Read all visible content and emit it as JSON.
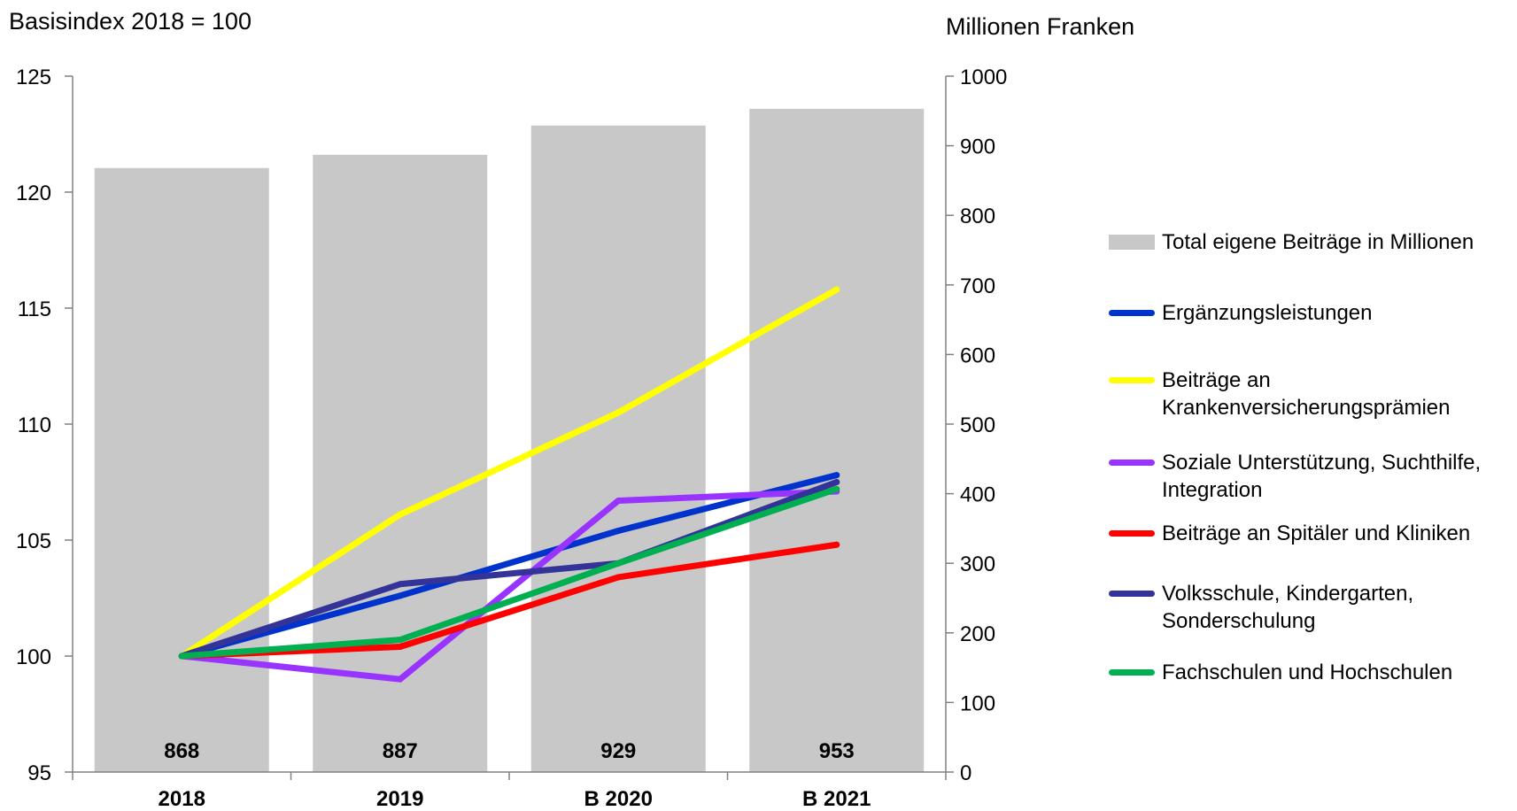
{
  "chart_data": {
    "type": "bar",
    "left_axis_label": "Basisindex 2018 = 100",
    "right_axis_label": "Millionen Franken",
    "categories": [
      "2018",
      "2019",
      "B 2020",
      "B 2021"
    ],
    "left_axis": {
      "ylim": [
        95,
        125
      ],
      "ticks": [
        "95",
        "100",
        "105",
        "110",
        "115",
        "120",
        "125"
      ]
    },
    "right_axis": {
      "ylim": [
        0,
        1000
      ],
      "ticks": [
        "0",
        "100",
        "200",
        "300",
        "400",
        "500",
        "600",
        "700",
        "800",
        "900",
        "1000"
      ]
    },
    "bars": {
      "name": "Total eigene Beiträge in Millionen",
      "color": "#c8c8c8",
      "axis": "right",
      "values": [
        868,
        887,
        929,
        953
      ],
      "labels": [
        "868",
        "887",
        "929",
        "953"
      ]
    },
    "series": [
      {
        "name": "Ergänzungsleistungen",
        "color": "#0033cc",
        "axis": "left",
        "values": [
          100,
          102.6,
          105.4,
          107.8
        ]
      },
      {
        "name": "Beiträge an Krankenversicherungsprämien",
        "color": "#ffff00",
        "axis": "left",
        "values": [
          100,
          106.1,
          110.5,
          115.8
        ]
      },
      {
        "name": "Soziale Unterstützung, Suchthilfe, Integration",
        "color": "#9933ff",
        "axis": "left",
        "values": [
          100,
          99,
          106.7,
          107.1
        ]
      },
      {
        "name": "Beiträge an Spitäler und Kliniken",
        "color": "#ff0000",
        "axis": "left",
        "values": [
          100,
          100.4,
          103.4,
          104.8
        ]
      },
      {
        "name": "Volksschule, Kindergarten, Sonderschulung",
        "color": "#333399",
        "axis": "left",
        "values": [
          100,
          103.1,
          104,
          107.5
        ]
      },
      {
        "name": "Fachschulen und Hochschulen",
        "color": "#00b050",
        "axis": "left",
        "values": [
          100,
          100.7,
          104,
          107.2
        ]
      }
    ],
    "grid": false,
    "legend_position": "right"
  }
}
